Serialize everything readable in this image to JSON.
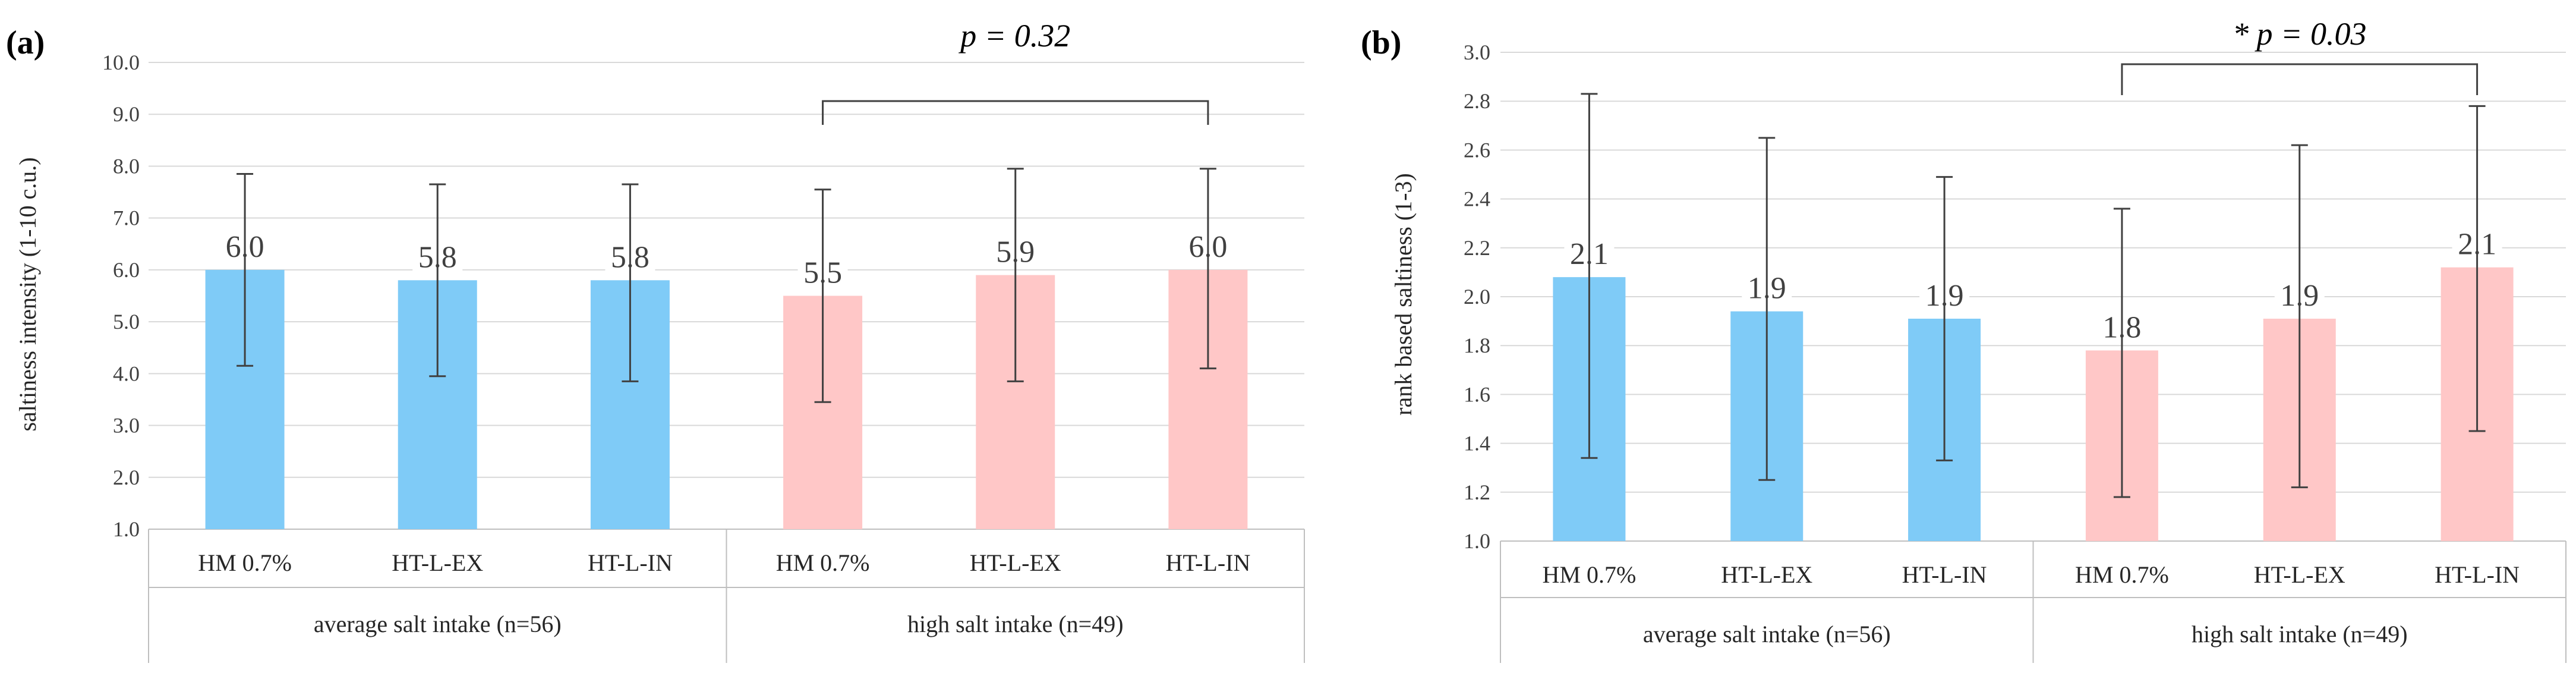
{
  "chart_data": [
    {
      "type": "bar",
      "panel_label": "(a)",
      "ylabel": "saltiness intensity (1-10 c.u.)",
      "ylim": [
        1.0,
        10.0
      ],
      "ytick_step": 1.0,
      "ytick_labels": [
        "1.0",
        "2.0",
        "3.0",
        "4.0",
        "5.0",
        "6.0",
        "7.0",
        "8.0",
        "9.0",
        "10.0"
      ],
      "grid": true,
      "categories": [
        "HM 0.7%",
        "HT-L-EX",
        "HT-L-IN",
        "HM 0.7%",
        "HT-L-EX",
        "HT-L-IN"
      ],
      "groups": [
        {
          "name": "average salt intake (n=56)",
          "count": 3
        },
        {
          "name": "high salt intake (n=49)",
          "count": 3
        }
      ],
      "values": [
        6.0,
        5.8,
        5.8,
        5.5,
        5.9,
        6.0
      ],
      "value_labels": [
        "6.0",
        "5.8",
        "5.8",
        "5.5",
        "5.9",
        "6.0"
      ],
      "error_low": [
        4.15,
        3.95,
        3.85,
        3.45,
        3.85,
        4.1
      ],
      "error_high": [
        7.85,
        7.65,
        7.65,
        7.55,
        7.95,
        7.95
      ],
      "bar_colors": [
        "#7FCBF7",
        "#7FCBF7",
        "#7FCBF7",
        "#FFC7C7",
        "#FFC7C7",
        "#FFC7C7"
      ],
      "annotation": {
        "text": "p = 0.32",
        "from_index": 3,
        "to_index": 5
      }
    },
    {
      "type": "bar",
      "panel_label": "(b)",
      "ylabel": "rank based saltiness (1-3)",
      "ylim": [
        1.0,
        3.0
      ],
      "ytick_step": 0.2,
      "ytick_labels": [
        "1.0",
        "1.2",
        "1.4",
        "1.6",
        "1.8",
        "2.0",
        "2.2",
        "2.4",
        "2.6",
        "2.8",
        "3.0"
      ],
      "grid": true,
      "categories": [
        "HM 0.7%",
        "HT-L-EX",
        "HT-L-IN",
        "HM 0.7%",
        "HT-L-EX",
        "HT-L-IN"
      ],
      "groups": [
        {
          "name": "average salt intake (n=56)",
          "count": 3
        },
        {
          "name": "high salt intake (n=49)",
          "count": 3
        }
      ],
      "values": [
        2.08,
        1.94,
        1.91,
        1.78,
        1.91,
        2.12
      ],
      "value_labels": [
        "2.1",
        "1.9",
        "1.9",
        "1.8",
        "1.9",
        "2.1"
      ],
      "error_low": [
        1.34,
        1.25,
        1.33,
        1.18,
        1.22,
        1.45
      ],
      "error_high": [
        2.83,
        2.65,
        2.49,
        2.36,
        2.62,
        2.78
      ],
      "bar_colors": [
        "#7FCBF7",
        "#7FCBF7",
        "#7FCBF7",
        "#FFC7C7",
        "#FFC7C7",
        "#FFC7C7"
      ],
      "annotation": {
        "text": "* p = 0.03",
        "from_index": 3,
        "to_index": 5
      }
    }
  ]
}
